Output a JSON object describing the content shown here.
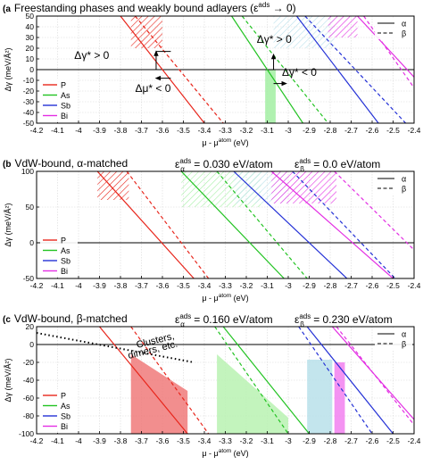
{
  "chart_data": [
    {
      "type": "line",
      "panel_label": "(a)",
      "title_main": "Freestanding phases and weakly bound adlayers (ε",
      "title_sup": "ads",
      "title_tail": " → 0)",
      "eps_alpha": null,
      "eps_beta": null,
      "xlabel": "μ - μ",
      "xlabel_sup": "atom",
      "xlabel_unit": " (eV)",
      "ylabel": "Δγ (meV/Å²)",
      "xlim": [
        -4.2,
        -2.4
      ],
      "ylim": [
        -50,
        50
      ],
      "xticks": [
        "-4.2",
        "-4.1",
        "-4",
        "-3.9",
        "-3.8",
        "-3.7",
        "-3.6",
        "-3.5",
        "-3.4",
        "-3.3",
        "-3.2",
        "-3.1",
        "-3",
        "-2.9",
        "-2.8",
        "-2.7",
        "-2.6",
        "-2.5",
        "-2.4"
      ],
      "yticks": [
        "-50",
        "-40",
        "-30",
        "-20",
        "-10",
        "0",
        "10",
        "20",
        "30",
        "40",
        "50"
      ],
      "grid": true,
      "legend_elements": {
        "items": [
          "P",
          "As",
          "Sb",
          "Bi"
        ],
        "position": "bottom-left"
      },
      "legend_phases": {
        "items": [
          "α",
          "β"
        ],
        "position": "top-right"
      },
      "series": [
        {
          "name": "P",
          "color": "#e8261c",
          "solid": [
            [
              -3.8,
              50
            ],
            [
              -3.4,
              -50
            ]
          ],
          "dashed": [
            [
              -3.73,
              50
            ],
            [
              -3.31,
              -50
            ]
          ]
        },
        {
          "name": "As",
          "color": "#22c322",
          "solid": [
            [
              -3.27,
              50
            ],
            [
              -2.93,
              -50
            ]
          ],
          "dashed": [
            [
              -3.22,
              50
            ],
            [
              -2.81,
              -50
            ]
          ]
        },
        {
          "name": "Sb",
          "color": "#2431d6",
          "solid": [
            [
              -2.96,
              50
            ],
            [
              -2.57,
              -50
            ]
          ],
          "dashed": [
            [
              -2.92,
              50
            ],
            [
              -2.44,
              -50
            ]
          ]
        },
        {
          "name": "Bi",
          "color": "#e32ee3",
          "solid": [
            [
              -2.67,
              50
            ],
            [
              -2.4,
              -7
            ]
          ],
          "dashed": [
            [
              -2.64,
              50
            ],
            [
              -2.4,
              -17
            ]
          ]
        }
      ],
      "hatched": [
        {
          "color": "#e8261c",
          "x": [
            -3.75,
            -3.6
          ],
          "y": [
            20,
            50
          ]
        },
        {
          "color": "#b8e0ea",
          "x": [
            -3.07,
            -2.78
          ],
          "y": [
            20,
            50
          ]
        },
        {
          "color": "#e32ee3",
          "x": [
            -2.81,
            -2.67
          ],
          "y": [
            30,
            50
          ]
        }
      ],
      "filled": [
        {
          "color": "#a7f0a7",
          "x": [
            -3.11,
            -3.06
          ],
          "y": [
            -50,
            0
          ]
        }
      ],
      "annotations": [
        {
          "text": "Δγ* > 0",
          "x": -4.02,
          "y": 10
        },
        {
          "text": "Δμ* < 0",
          "x": -3.73,
          "y": -21
        },
        {
          "text": "Δγ* > 0",
          "x": -3.15,
          "y": 25
        },
        {
          "text": "Δγ* < 0",
          "x": -3.03,
          "y": -6
        }
      ]
    },
    {
      "type": "line",
      "panel_label": "(b)",
      "title_main": "VdW-bound, α-matched",
      "title_sup": "",
      "title_tail": "",
      "eps_alpha": "ε",
      "eps_alpha_sub": "α",
      "eps_alpha_sup": "ads",
      "eps_alpha_value": " = 0.030 eV/atom",
      "eps_beta": "ε",
      "eps_beta_sub": "β",
      "eps_beta_sup": "ads",
      "eps_beta_value": " = 0.0 eV/atom",
      "xlabel": "μ - μ",
      "xlabel_sup": "atom",
      "xlabel_unit": " (eV)",
      "ylabel": "Δγ (meV/Å²)",
      "xlim": [
        -4.2,
        -2.4
      ],
      "ylim": [
        -50,
        100
      ],
      "xticks": [
        "-4.2",
        "-4.1",
        "-4",
        "-3.9",
        "-3.8",
        "-3.7",
        "-3.6",
        "-3.5",
        "-3.4",
        "-3.3",
        "-3.2",
        "-3.1",
        "-3",
        "-2.9",
        "-2.8",
        "-2.7",
        "-2.6",
        "-2.5",
        "-2.4"
      ],
      "yticks": [
        "-50",
        "0",
        "50",
        "100"
      ],
      "grid": true,
      "legend_elements": {
        "items": [
          "P",
          "As",
          "Sb",
          "Bi"
        ],
        "position": "bottom-left"
      },
      "legend_phases": {
        "items": [
          "α",
          "β"
        ],
        "position": "top-right"
      },
      "series": [
        {
          "name": "P",
          "color": "#e8261c",
          "solid": [
            [
              -3.91,
              100
            ],
            [
              -3.45,
              -50
            ]
          ],
          "dashed": [
            [
              -3.77,
              100
            ],
            [
              -3.38,
              -50
            ]
          ]
        },
        {
          "name": "As",
          "color": "#22c322",
          "solid": [
            [
              -3.51,
              100
            ],
            [
              -3.02,
              -50
            ]
          ],
          "dashed": [
            [
              -3.34,
              100
            ],
            [
              -2.91,
              -50
            ]
          ]
        },
        {
          "name": "Sb",
          "color": "#2431d6",
          "solid": [
            [
              -3.26,
              100
            ],
            [
              -2.72,
              -50
            ]
          ],
          "dashed": [
            [
              -2.98,
              100
            ],
            [
              -2.49,
              -50
            ]
          ]
        },
        {
          "name": "Bi",
          "color": "#e32ee3",
          "solid": [
            [
              -3.08,
              100
            ],
            [
              -2.5,
              -50
            ]
          ],
          "dashed": [
            [
              -2.78,
              100
            ],
            [
              -2.4,
              -10
            ]
          ]
        }
      ],
      "hatched": [
        {
          "color": "#e8261c",
          "x": [
            -3.91,
            -3.76
          ],
          "y": [
            60,
            100
          ]
        },
        {
          "color": "#a7f0a7",
          "x": [
            -3.51,
            -3.13
          ],
          "y": [
            50,
            100
          ]
        },
        {
          "color": "#b8e0ea",
          "x": [
            -3.26,
            -3.0
          ],
          "y": [
            55,
            100
          ]
        },
        {
          "color": "#e32ee3",
          "x": [
            -3.08,
            -2.77
          ],
          "y": [
            55,
            100
          ]
        }
      ],
      "filled": [],
      "annotations": []
    },
    {
      "type": "line",
      "panel_label": "(c)",
      "title_main": "VdW-bound, β-matched",
      "title_sup": "",
      "title_tail": "",
      "eps_alpha": "ε",
      "eps_alpha_sub": "α",
      "eps_alpha_sup": "ads",
      "eps_alpha_value": " = 0.160 eV/atom",
      "eps_beta": "ε",
      "eps_beta_sub": "β",
      "eps_beta_sup": "ads",
      "eps_beta_value": " = 0.230 eV/atom",
      "xlabel": "μ - μ",
      "xlabel_sup": "atom",
      "xlabel_unit": " (eV)",
      "ylabel": "Δγ (meV/Å²)",
      "xlim": [
        -4.2,
        -2.4
      ],
      "ylim": [
        -100,
        20
      ],
      "xticks": [
        "-4.2",
        "-4.1",
        "-4",
        "-3.9",
        "-3.8",
        "-3.7",
        "-3.6",
        "-3.5",
        "-3.4",
        "-3.3",
        "-3.2",
        "-3.1",
        "-3",
        "-2.9",
        "-2.8",
        "-2.7",
        "-2.6",
        "-2.5",
        "-2.4"
      ],
      "yticks": [
        "-100",
        "-80",
        "-60",
        "-40",
        "-20",
        "0",
        "20"
      ],
      "grid": true,
      "legend_elements": {
        "items": [
          "P",
          "As",
          "Sb",
          "Bi"
        ],
        "position": "bottom-left"
      },
      "legend_phases": {
        "items": [
          "α",
          "β"
        ],
        "position": "top-right"
      },
      "series": [
        {
          "name": "P",
          "color": "#e8261c",
          "solid": [
            [
              -3.9,
              20
            ],
            [
              -3.48,
              -100
            ]
          ],
          "dashed": [
            [
              -3.75,
              20
            ],
            [
              -3.38,
              -100
            ]
          ]
        },
        {
          "name": "As",
          "color": "#22c322",
          "solid": [
            [
              -3.31,
              20
            ],
            [
              -2.9,
              -100
            ]
          ],
          "dashed": [
            [
              -3.35,
              20
            ],
            [
              -3.0,
              -100
            ]
          ]
        },
        {
          "name": "Sb",
          "color": "#2431d6",
          "solid": [
            [
              -2.91,
              20
            ],
            [
              -2.5,
              -100
            ]
          ],
          "dashed": [
            [
              -2.95,
              20
            ],
            [
              -2.6,
              -100
            ]
          ]
        },
        {
          "name": "Bi",
          "color": "#e32ee3",
          "solid": [
            [
              -2.79,
              20
            ],
            [
              -2.4,
              -84
            ]
          ],
          "dashed": [
            [
              -2.77,
              20
            ],
            [
              -2.4,
              -90
            ]
          ]
        }
      ],
      "polygons": [
        {
          "color": "#f07a7a",
          "points": [
            [
              -3.75,
              -11
            ],
            [
              -3.75,
              -100
            ],
            [
              -3.48,
              -100
            ],
            [
              -3.48,
              -52
            ]
          ]
        },
        {
          "color": "#b9f2b2",
          "points": [
            [
              -3.34,
              -11
            ],
            [
              -3.34,
              -100
            ],
            [
              -3.0,
              -100
            ],
            [
              -3.0,
              -82
            ]
          ]
        },
        {
          "color": "#b8e0ea",
          "points": [
            [
              -2.91,
              -17
            ],
            [
              -2.91,
              -100
            ],
            [
              -2.79,
              -100
            ],
            [
              -2.79,
              -17
            ]
          ]
        },
        {
          "color": "#f280f0",
          "points": [
            [
              -2.78,
              -20
            ],
            [
              -2.78,
              -100
            ],
            [
              -2.73,
              -100
            ],
            [
              -2.73,
              -20
            ]
          ]
        }
      ],
      "dotted_line": [
        [
          -4.2,
          13
        ],
        [
          -3.45,
          -20
        ]
      ],
      "annotations": [
        {
          "text": "Clusters,",
          "x": -3.72,
          "y": -4
        },
        {
          "text": "dimers, etc.",
          "x": -3.76,
          "y": -16
        }
      ]
    }
  ]
}
